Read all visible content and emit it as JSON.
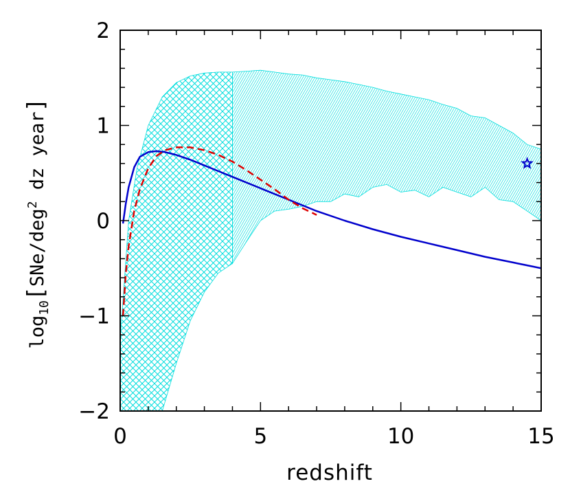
{
  "chart_data": {
    "type": "line",
    "title": "",
    "xlabel": "redshift",
    "ylabel": "log10[SNe/deg2 dz year]",
    "ylabel_parts": {
      "prefix": "log",
      "sub": "10",
      "bracket_open": "[",
      "main": "SNe/deg",
      "sup": "2",
      "suffix": " dz year",
      "bracket_close": "]"
    },
    "xlim": [
      0,
      15
    ],
    "ylim": [
      -2,
      2
    ],
    "x_ticks": [
      0,
      5,
      10,
      15
    ],
    "x_tick_labels": [
      "0",
      "5",
      "10",
      "15"
    ],
    "y_ticks": [
      -2,
      -1,
      0,
      1,
      2
    ],
    "y_tick_labels": [
      "−2",
      "−1",
      "0",
      "1",
      "2"
    ],
    "grid": false,
    "legend": "none",
    "series": [
      {
        "style": "solid",
        "color": "#0000cc",
        "x": [
          0.1,
          0.2,
          0.3,
          0.5,
          0.7,
          1.0,
          1.3,
          1.6,
          2.0,
          2.5,
          3.0,
          3.5,
          4.0,
          5.0,
          6.0,
          7.0,
          8.0,
          9.0,
          10.0,
          11.0,
          12.0,
          13.0,
          14.0,
          15.0
        ],
        "y": [
          -0.03,
          0.18,
          0.35,
          0.56,
          0.67,
          0.72,
          0.73,
          0.72,
          0.69,
          0.64,
          0.58,
          0.52,
          0.46,
          0.34,
          0.22,
          0.1,
          0.0,
          -0.09,
          -0.17,
          -0.24,
          -0.31,
          -0.38,
          -0.44,
          -0.5
        ]
      },
      {
        "style": "dashed",
        "color": "#dd0000",
        "x": [
          0.1,
          0.2,
          0.3,
          0.5,
          0.7,
          1.0,
          1.3,
          1.6,
          2.0,
          2.5,
          3.0,
          3.5,
          4.0,
          4.5,
          5.0,
          5.5,
          6.0,
          6.5,
          7.0
        ],
        "y": [
          -1.0,
          -0.55,
          -0.27,
          0.1,
          0.33,
          0.55,
          0.68,
          0.74,
          0.77,
          0.77,
          0.74,
          0.69,
          0.62,
          0.53,
          0.43,
          0.33,
          0.22,
          0.13,
          0.06
        ]
      }
    ],
    "bands": [
      {
        "hatch": "crosshatch",
        "color": "#00dddd",
        "x": [
          0.0,
          0.3,
          0.6,
          1.0,
          1.5,
          2.0,
          2.5,
          3.0,
          3.5,
          4.0
        ],
        "upper": [
          -1.25,
          0.0,
          0.55,
          1.0,
          1.3,
          1.45,
          1.52,
          1.55,
          1.56,
          1.56
        ],
        "lower": [
          -2.0,
          -2.0,
          -2.0,
          -2.0,
          -2.0,
          -1.5,
          -1.05,
          -0.75,
          -0.55,
          -0.45
        ]
      },
      {
        "hatch": "dense",
        "color": "#00dddd",
        "x": [
          4.0,
          4.5,
          5.0,
          5.5,
          6.0,
          6.5,
          7.0,
          7.5,
          8.0,
          8.5,
          9.0,
          9.5,
          10.0,
          10.5,
          11.0,
          11.5,
          12.0,
          12.5,
          13.0,
          13.5,
          14.0,
          14.5,
          15.0
        ],
        "upper": [
          1.56,
          1.57,
          1.58,
          1.56,
          1.54,
          1.53,
          1.5,
          1.48,
          1.46,
          1.43,
          1.4,
          1.36,
          1.33,
          1.3,
          1.27,
          1.22,
          1.18,
          1.1,
          1.08,
          1.0,
          0.92,
          0.8,
          0.75
        ],
        "lower": [
          -0.45,
          -0.22,
          0.0,
          0.1,
          0.12,
          0.15,
          0.2,
          0.2,
          0.28,
          0.25,
          0.35,
          0.38,
          0.3,
          0.32,
          0.25,
          0.35,
          0.3,
          0.25,
          0.35,
          0.22,
          0.2,
          0.1,
          0.0
        ]
      }
    ],
    "markers": [
      {
        "shape": "star",
        "color": "#0000cc",
        "x": 14.5,
        "y": 0.6
      }
    ]
  }
}
